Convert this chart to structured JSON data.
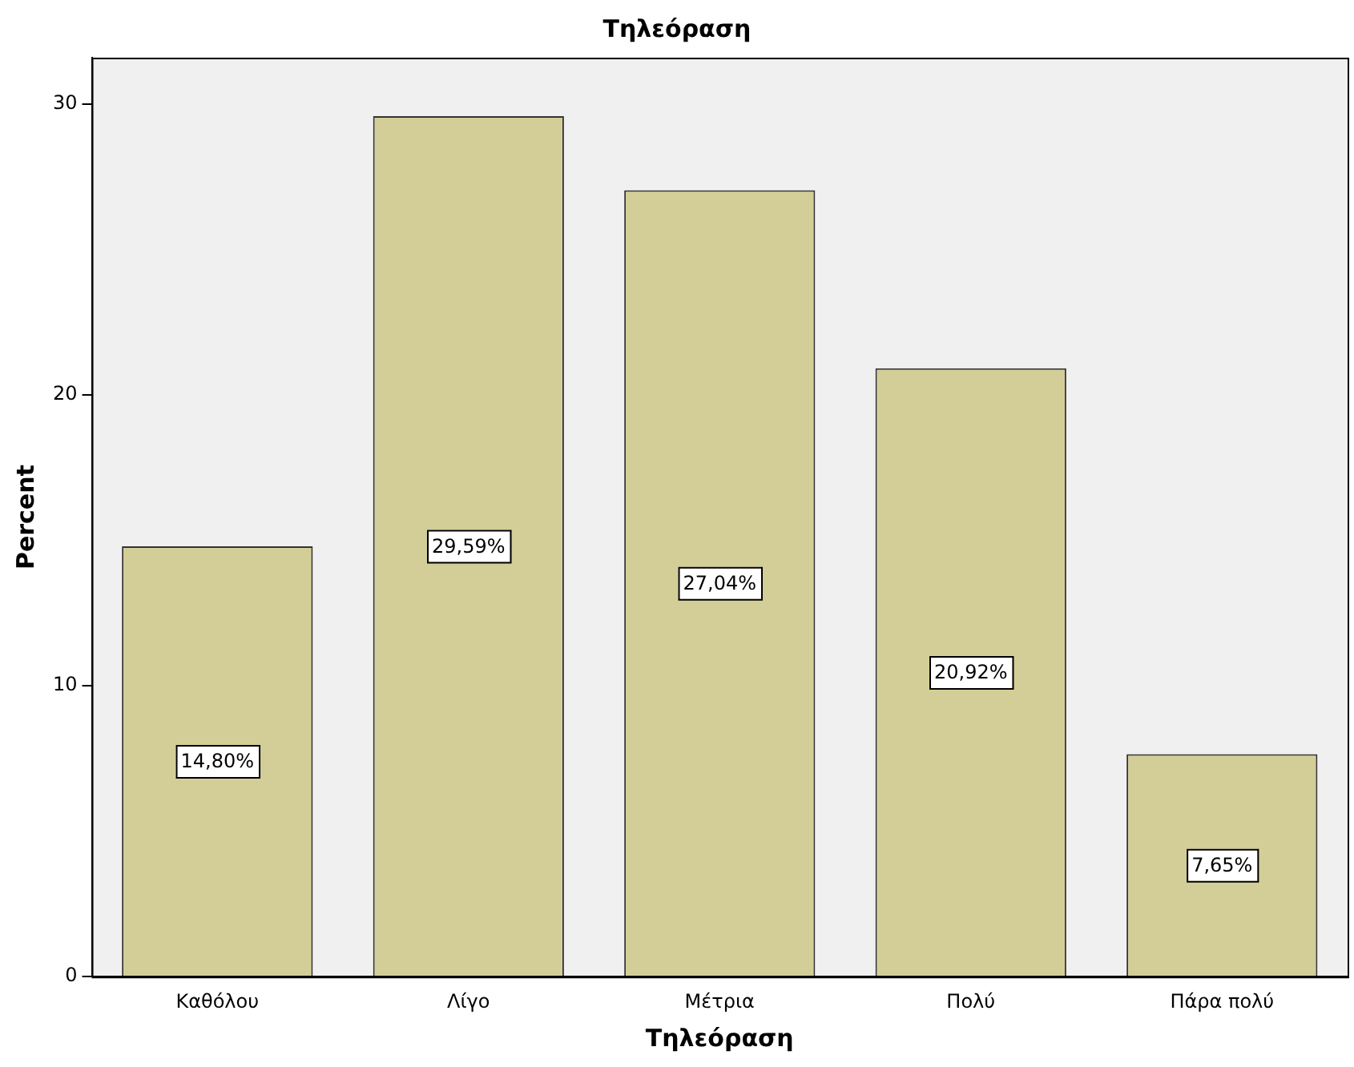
{
  "chart_data": {
    "type": "bar",
    "title": "Τηλεόραση",
    "xlabel": "Τηλεόραση",
    "ylabel": "Percent",
    "categories": [
      "Καθόλου",
      "Λίγο",
      "Μέτρια",
      "Πολύ",
      "Πάρα πολύ"
    ],
    "values": [
      14.8,
      29.59,
      27.04,
      20.92,
      7.65
    ],
    "value_labels": [
      "14,80%",
      "29,59%",
      "27,04%",
      "20,92%",
      "7,65%"
    ],
    "color": "#d3ce97",
    "ylim": [
      0,
      31.6
    ],
    "yticks": [
      0,
      10,
      20,
      30
    ],
    "grid": false,
    "legend": false
  }
}
